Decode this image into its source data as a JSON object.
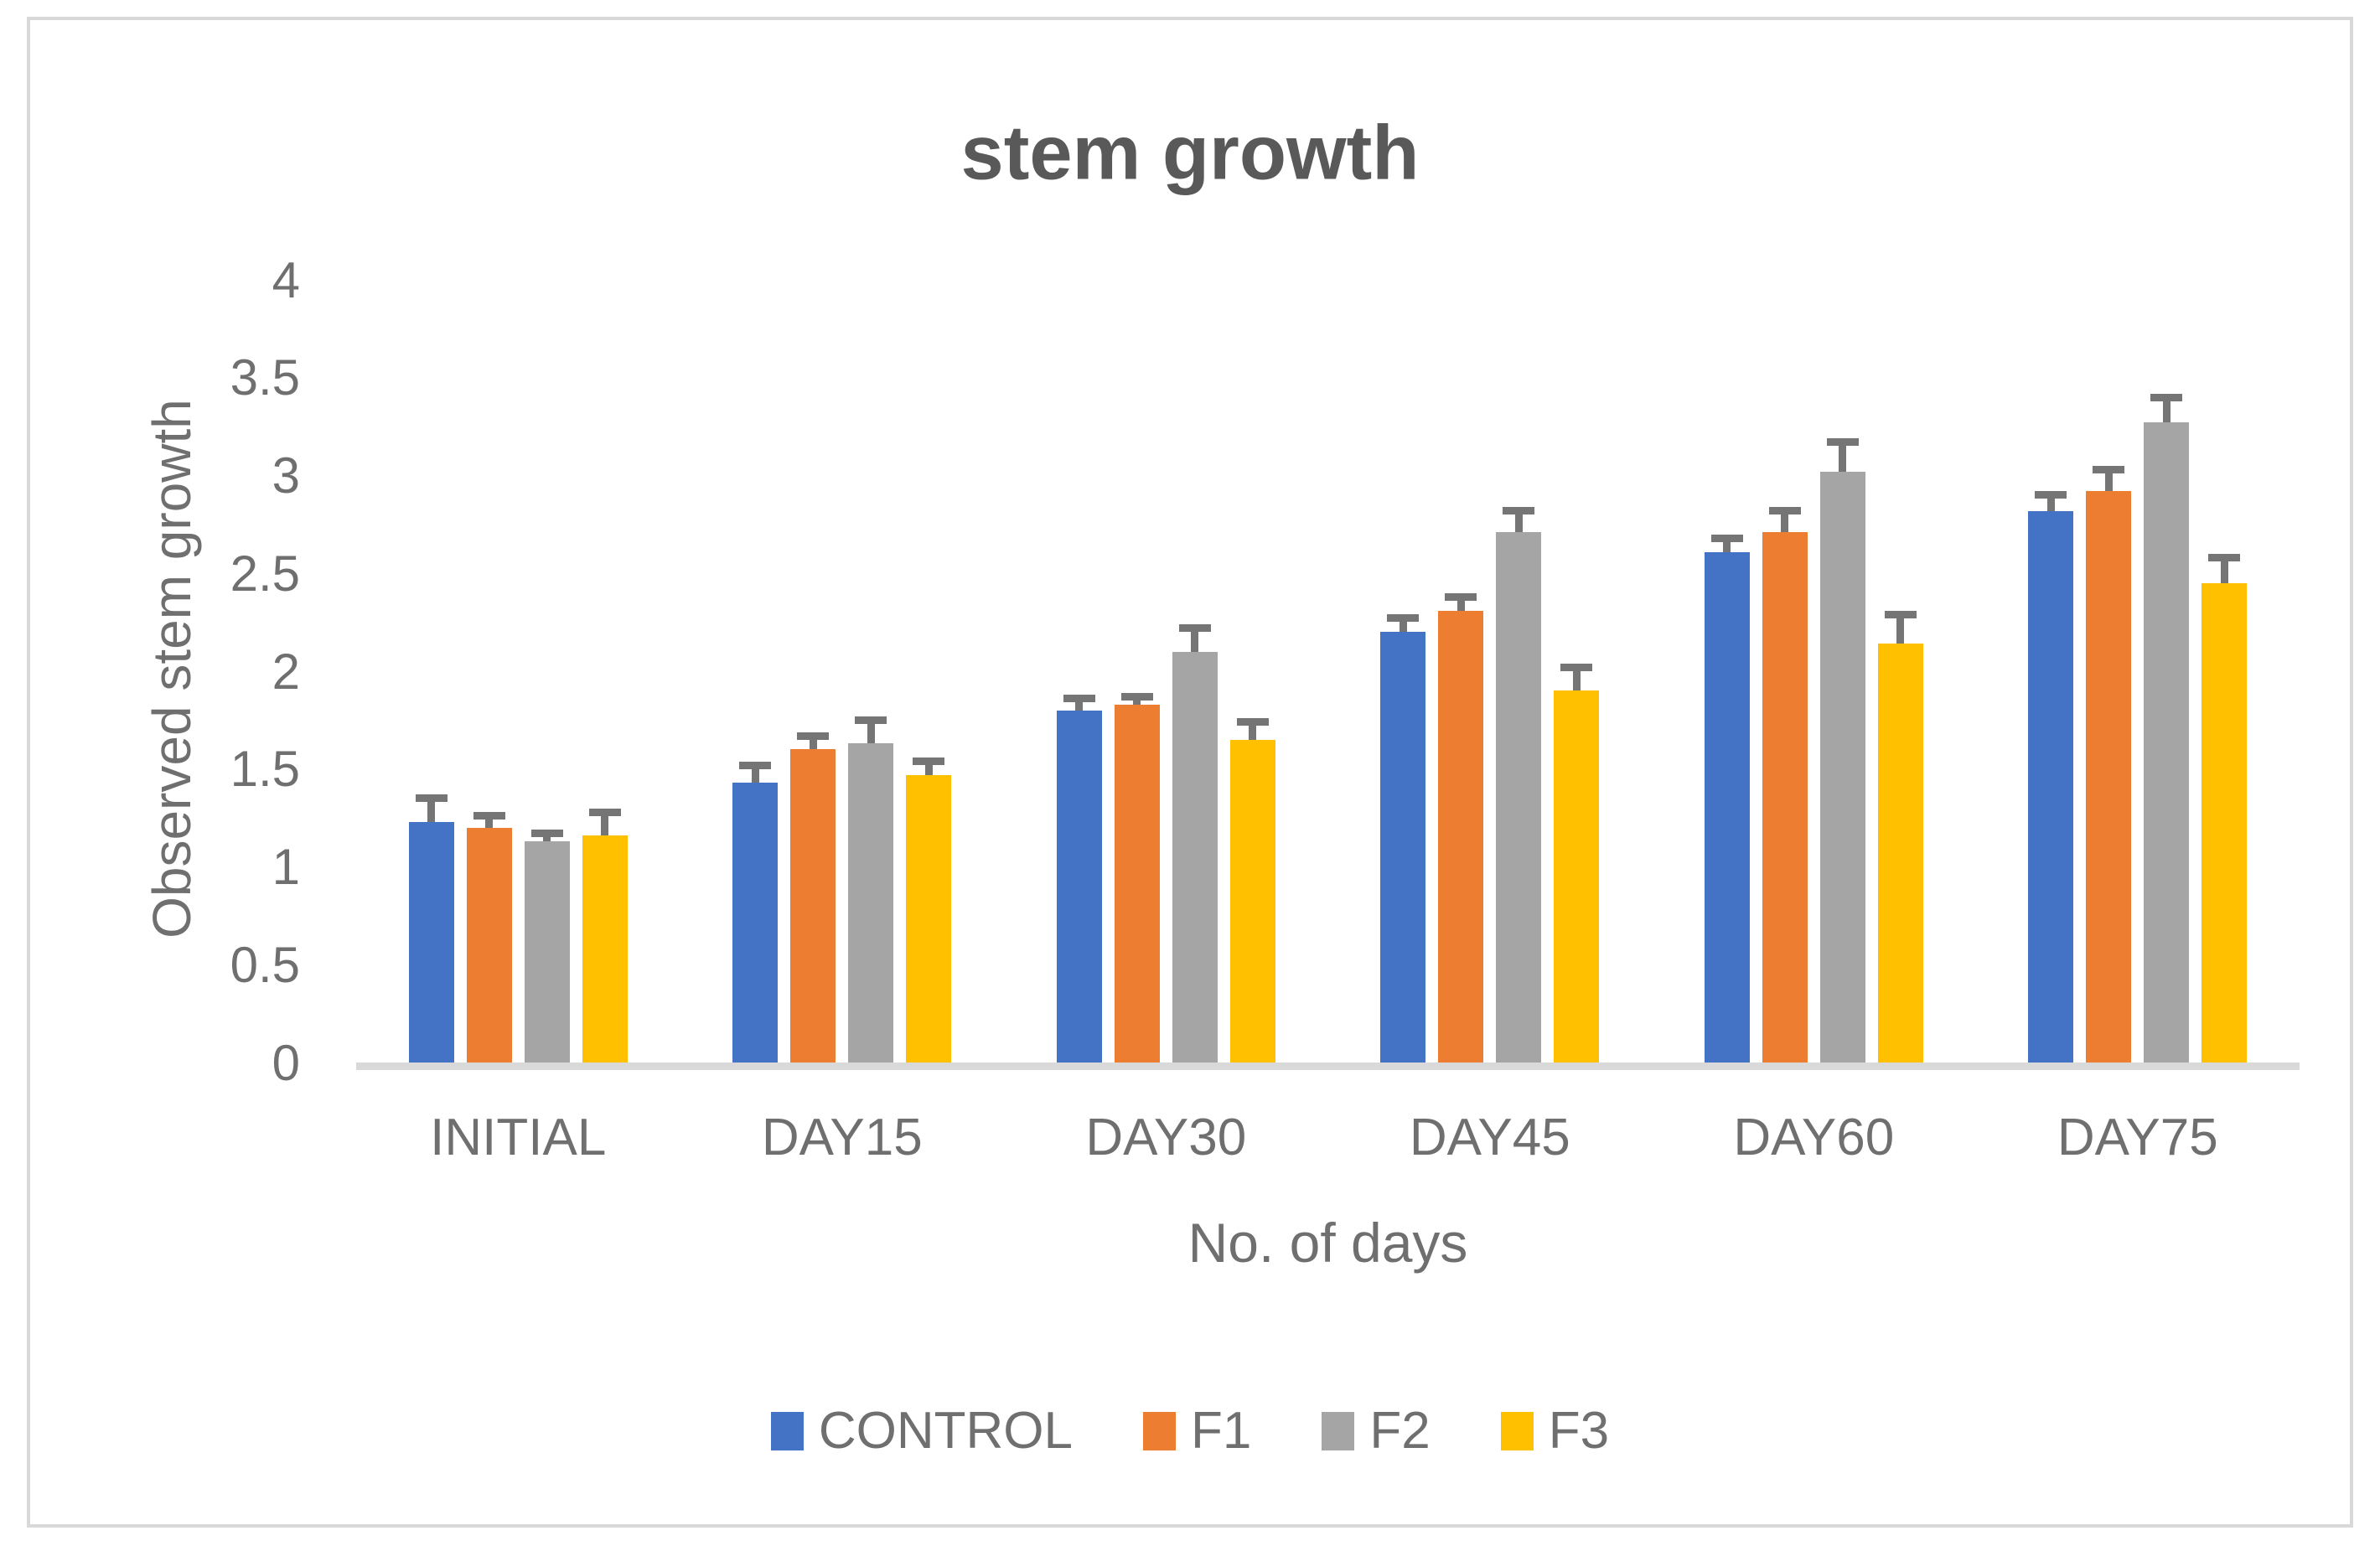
{
  "page": {
    "background": "#ffffff",
    "border_color": "#d9d9d9"
  },
  "chart_data": {
    "type": "bar",
    "title": "stem growth",
    "xlabel": "No. of days",
    "ylabel": "Observed stem growth",
    "categories": [
      "INITIAL",
      "DAY15",
      "DAY30",
      "DAY45",
      "DAY60",
      "DAY75"
    ],
    "series": [
      {
        "name": "CONTROL",
        "color": "#4472c4",
        "values": [
          1.23,
          1.43,
          1.8,
          2.2,
          2.61,
          2.82
        ],
        "errors": [
          0.12,
          0.09,
          0.06,
          0.07,
          0.07,
          0.08
        ]
      },
      {
        "name": "F1",
        "color": "#ed7d31",
        "values": [
          1.2,
          1.6,
          1.83,
          2.31,
          2.71,
          2.92
        ],
        "errors": [
          0.06,
          0.07,
          0.04,
          0.07,
          0.11,
          0.11
        ]
      },
      {
        "name": "F2",
        "color": "#a5a5a5",
        "values": [
          1.13,
          1.63,
          2.1,
          2.71,
          3.02,
          3.27
        ],
        "errors": [
          0.04,
          0.12,
          0.12,
          0.11,
          0.15,
          0.13
        ]
      },
      {
        "name": "F3",
        "color": "#ffc000",
        "values": [
          1.16,
          1.47,
          1.65,
          1.9,
          2.14,
          2.45
        ],
        "errors": [
          0.12,
          0.07,
          0.09,
          0.12,
          0.15,
          0.13
        ]
      }
    ],
    "ylim": [
      0,
      4
    ],
    "ytick_step": 0.5,
    "yticks": [
      "0",
      "0.5",
      "1",
      "1.5",
      "2",
      "2.5",
      "3",
      "3.5",
      "4"
    ],
    "grid": false,
    "legend_position": "bottom",
    "error_bar_color": "#757575",
    "axis_line_color": "#d9d9d9",
    "tick_text_color": "#6f6f6f",
    "title_color": "#595959"
  }
}
